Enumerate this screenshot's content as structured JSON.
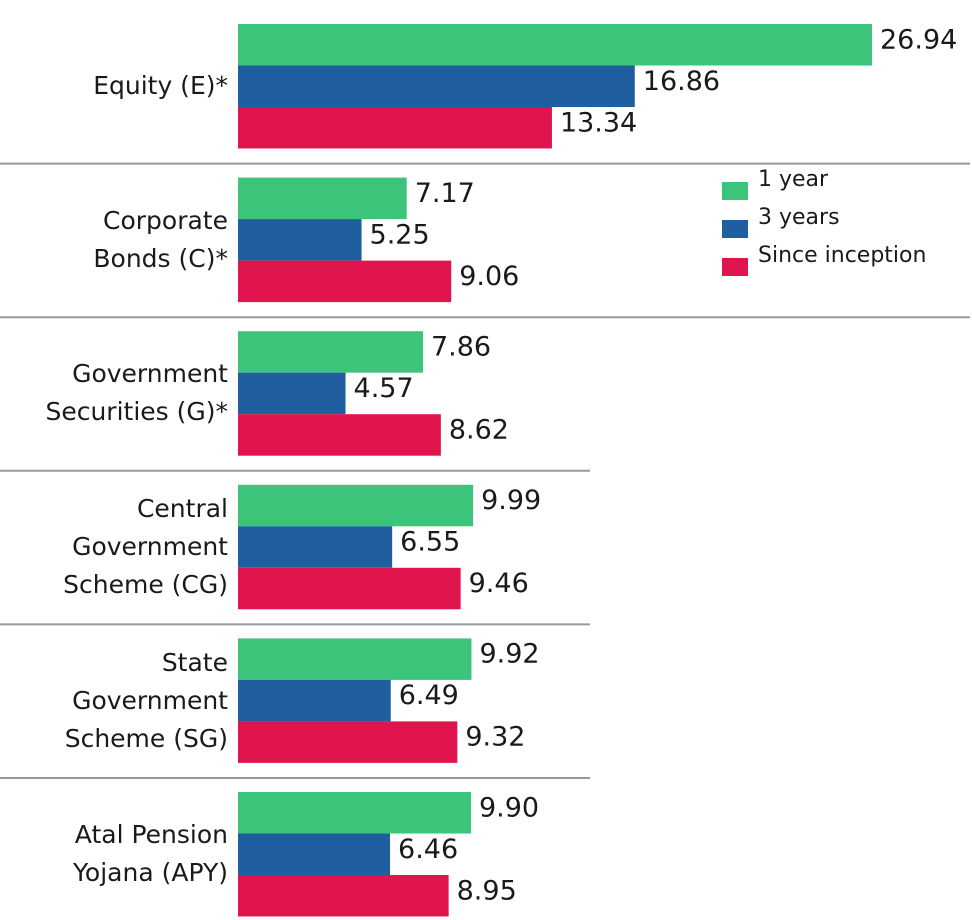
{
  "chart_data": {
    "type": "bar",
    "orientation": "horizontal",
    "categories": [
      "Equity (E)*",
      "Corporate Bonds (C)*",
      "Government Securities (G)*",
      "Central Government Scheme (CG)",
      "State Government Scheme (SG)",
      "Atal Pension Yojana (APY)"
    ],
    "series": [
      {
        "name": "1 year",
        "color": "#3cc47a",
        "values": [
          26.94,
          7.17,
          7.86,
          9.99,
          9.92,
          9.9
        ],
        "value_labels": [
          "26.94",
          "7.17",
          "7.86",
          "9.99",
          "9.92",
          "9.90"
        ]
      },
      {
        "name": "3 years",
        "color": "#1f5fa0",
        "values": [
          16.86,
          5.25,
          4.57,
          6.55,
          6.49,
          6.46
        ]
      },
      {
        "name": "Since inception",
        "color": "#e0154e",
        "values": [
          13.34,
          9.06,
          8.62,
          9.46,
          9.32,
          8.95
        ]
      }
    ],
    "legend": "upper-right"
  }
}
